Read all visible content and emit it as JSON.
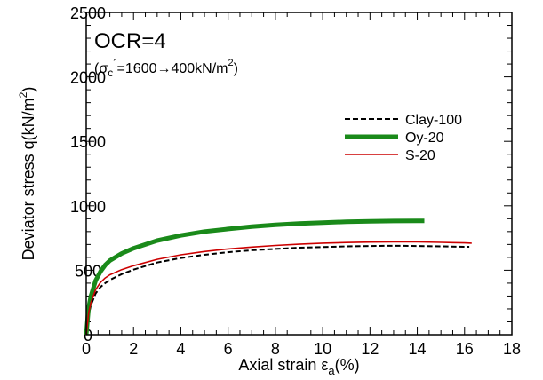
{
  "chart_data": {
    "type": "line",
    "title": "",
    "xlabel": {
      "main": "Axial strain ε",
      "sub": "a",
      "suffix": "(%)"
    },
    "ylabel": {
      "main": "Deviator stress q(kN/m",
      "sup": "2",
      "suffix": ")"
    },
    "xlim": [
      0,
      18
    ],
    "ylim": [
      0,
      2500
    ],
    "xticks": [
      "0",
      "2",
      "4",
      "6",
      "8",
      "10",
      "12",
      "14",
      "16",
      "18"
    ],
    "yticks": [
      "0",
      "500",
      "1000",
      "1500",
      "2000",
      "2500"
    ],
    "xminor_step": 0.5,
    "yminor_step": 100,
    "grid": false,
    "legend_position": "right, upper-middle",
    "annotations": {
      "line1": "OCR=4",
      "line2_open": "(σ",
      "line2_sub": "c",
      "line2_prime": "´",
      "line2_rest": "=1600→400kN/m",
      "line2_sup": "2",
      "line2_close": ")"
    },
    "series": [
      {
        "name": "Clay-100",
        "color": "#000000",
        "style": "dashed",
        "x": [
          0,
          0.1,
          0.2,
          0.4,
          0.6,
          0.8,
          1,
          1.5,
          2,
          3,
          4,
          5,
          6,
          7,
          8,
          9,
          10,
          11,
          12,
          13,
          14,
          15,
          16,
          16.2
        ],
        "y": [
          0,
          150,
          230,
          320,
          370,
          400,
          425,
          470,
          505,
          560,
          595,
          620,
          640,
          655,
          665,
          675,
          680,
          685,
          688,
          690,
          688,
          685,
          682,
          682
        ]
      },
      {
        "name": "Oy-20",
        "color": "#1a8a1a",
        "style": "solid-thick",
        "x": [
          0,
          0.1,
          0.2,
          0.4,
          0.6,
          0.8,
          1,
          1.5,
          2,
          3,
          4,
          5,
          6,
          7,
          8,
          9,
          10,
          11,
          12,
          13,
          14,
          14.3
        ],
        "y": [
          0,
          210,
          300,
          420,
          490,
          540,
          575,
          630,
          670,
          730,
          770,
          800,
          820,
          838,
          852,
          862,
          870,
          876,
          880,
          882,
          883,
          883
        ]
      },
      {
        "name": "S-20",
        "color": "#cc0000",
        "style": "solid-thin",
        "x": [
          0,
          0.1,
          0.2,
          0.4,
          0.6,
          0.8,
          1,
          1.5,
          2,
          3,
          4,
          5,
          6,
          7,
          8,
          9,
          10,
          11,
          12,
          13,
          14,
          15,
          16,
          16.3
        ],
        "y": [
          0,
          170,
          250,
          350,
          405,
          440,
          465,
          505,
          535,
          585,
          620,
          645,
          665,
          680,
          692,
          702,
          710,
          715,
          718,
          720,
          720,
          716,
          712,
          710
        ]
      }
    ]
  }
}
